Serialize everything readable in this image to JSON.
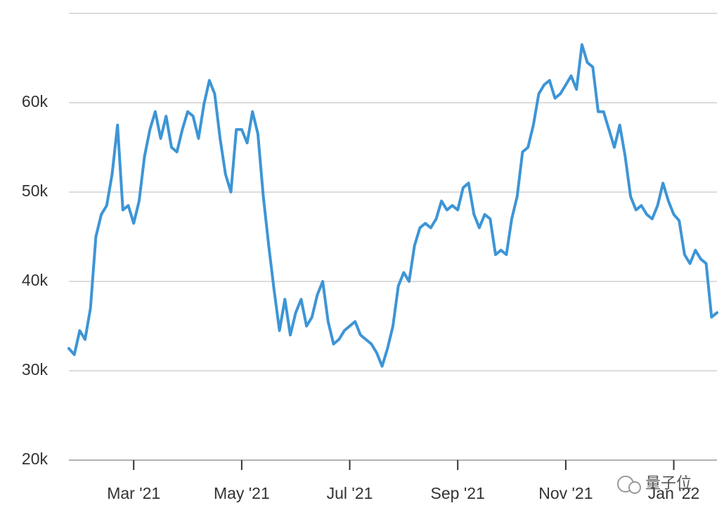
{
  "chart_data": {
    "type": "line",
    "categories": [
      null,
      null,
      null,
      null,
      null,
      null,
      null,
      null,
      null,
      null,
      null,
      null,
      "Mar '21",
      null,
      null,
      null,
      null,
      null,
      null,
      null,
      null,
      null,
      null,
      null,
      null,
      null,
      null,
      null,
      null,
      null,
      null,
      null,
      "May '21",
      null,
      null,
      null,
      null,
      null,
      null,
      null,
      null,
      null,
      null,
      null,
      null,
      null,
      null,
      null,
      null,
      null,
      null,
      null,
      "Jul '21",
      null,
      null,
      null,
      null,
      null,
      null,
      null,
      null,
      null,
      null,
      null,
      null,
      null,
      null,
      null,
      null,
      null,
      null,
      null,
      "Sep '21",
      null,
      null,
      null,
      null,
      null,
      null,
      null,
      null,
      null,
      null,
      null,
      null,
      null,
      null,
      null,
      null,
      null,
      null,
      null,
      "Nov '21",
      null,
      null,
      null,
      null,
      null,
      null,
      null,
      null,
      null,
      null,
      null,
      null,
      null,
      null,
      null,
      null,
      null,
      null,
      null,
      "Jan '22",
      null,
      null,
      null,
      null,
      null,
      null,
      null,
      null
    ],
    "series": [
      {
        "color": "#3d95d6",
        "values": [
          32500,
          31800,
          34500,
          33500,
          37000,
          45000,
          47500,
          48500,
          52000,
          57500,
          48000,
          48500,
          46500,
          49000,
          54000,
          57000,
          59000,
          56000,
          58500,
          55000,
          54500,
          57000,
          59000,
          58500,
          56000,
          59800,
          62500,
          61000,
          56000,
          52000,
          50000,
          57000,
          57000,
          55500,
          59000,
          56500,
          49500,
          44000,
          39000,
          34500,
          38000,
          34000,
          36500,
          38000,
          35000,
          36000,
          38500,
          40000,
          35500,
          33000,
          33500,
          34500,
          35000,
          35500,
          34000,
          33500,
          33000,
          32000,
          30500,
          32500,
          35000,
          39500,
          41000,
          40000,
          44000,
          46000,
          46500,
          46000,
          47000,
          49000,
          48000,
          48500,
          48000,
          50500,
          51000,
          47500,
          46000,
          47500,
          47000,
          43000,
          43500,
          43000,
          47000,
          49500,
          54500,
          55000,
          57500,
          61000,
          62000,
          62500,
          60500,
          61000,
          62000,
          63000,
          61500,
          66500,
          64500,
          64000,
          59000,
          59000,
          57000,
          55000,
          57500,
          54000,
          49500,
          48000,
          48500,
          47500,
          47000,
          48500,
          51000,
          49000,
          47500,
          46800,
          43000,
          42000,
          43500,
          42500,
          42000,
          36000,
          36500
        ]
      }
    ],
    "ylim": [
      20000,
      70000
    ],
    "yticks": [
      {
        "value": 20000,
        "label": "20k"
      },
      {
        "value": 30000,
        "label": "30k"
      },
      {
        "value": 40000,
        "label": "40k"
      },
      {
        "value": 50000,
        "label": "50k"
      },
      {
        "value": 60000,
        "label": "60k"
      }
    ],
    "grid": true,
    "watermark": "量子位"
  }
}
